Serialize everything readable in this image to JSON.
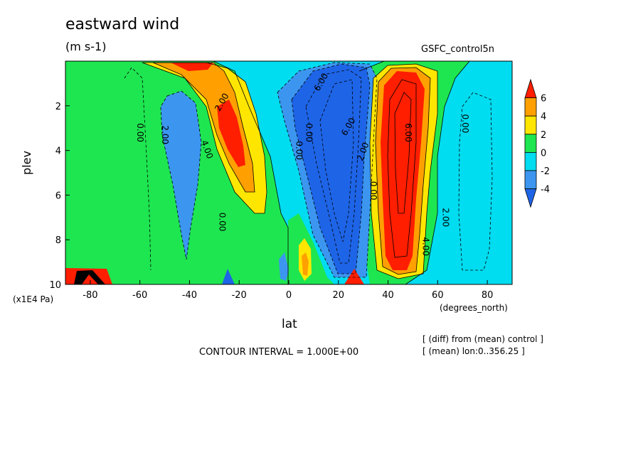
{
  "title": "eastward wind",
  "units": "(m s-1)",
  "source": "GSFC_control5n",
  "ylabel": "plev",
  "xlabel": "lat",
  "plev_scale": "(x1E4 Pa)",
  "lat_units": "(degrees_north)",
  "contour_interval": "CONTOUR INTERVAL = 1.000E+00",
  "diff_note": "[ (diff) from (mean) control ]",
  "mean_note": "[ (mean) lon:0..356.25 ]",
  "colors": {
    "below_-4": "#1e64e6",
    "-4_-2": "#3c96f0",
    "-2_0": "#00dcf0",
    "0_2": "#1ee650",
    "2_4": "#ffe600",
    "4_6": "#ffa000",
    "above_6": "#ff1e00"
  },
  "chart_data": {
    "type": "contour",
    "xlim": [
      -90,
      90
    ],
    "ylim": [
      10,
      0
    ],
    "x_ticks": [
      -80,
      -60,
      -40,
      -20,
      0,
      20,
      40,
      60,
      80
    ],
    "x_tick_labels": [
      "-80",
      "-60",
      "-40",
      "-20",
      "0",
      "20",
      "40",
      "60",
      "80"
    ],
    "y_ticks": [
      2,
      4,
      6,
      8,
      10
    ],
    "y_tick_labels": [
      "2",
      "4",
      "6",
      "8",
      "10"
    ],
    "colorbar_ticks": [
      "6",
      "4",
      "2",
      "0",
      "-2",
      "-4"
    ],
    "contour_labels": [
      {
        "text": "2.00",
        "lat": -26,
        "plev": 1.9,
        "rotate": -60
      },
      {
        "text": "4.00",
        "lat": -34,
        "plev": 4.0,
        "rotate": 70
      },
      {
        "text": "0.00",
        "lat": -61,
        "plev": 3.2,
        "rotate": 90
      },
      {
        "text": "2.00",
        "lat": -51,
        "plev": 3.3,
        "rotate": 90
      },
      {
        "text": "0.00",
        "lat": -28,
        "plev": 7.2,
        "rotate": 90
      },
      {
        "text": "0.00",
        "lat": 7,
        "plev": 3.2,
        "rotate": 90
      },
      {
        "text": "0.00",
        "lat": 3,
        "plev": 4.0,
        "rotate": 90
      },
      {
        "text": "6.00",
        "lat": 14,
        "plev": 1.0,
        "rotate": -60
      },
      {
        "text": "6.00",
        "lat": 25,
        "plev": 3.0,
        "rotate": -60
      },
      {
        "text": "2.00",
        "lat": 31,
        "plev": 4.1,
        "rotate": -70
      },
      {
        "text": "0.00",
        "lat": 33,
        "plev": 5.8,
        "rotate": 90
      },
      {
        "text": "6.00",
        "lat": 47,
        "plev": 3.2,
        "rotate": 90
      },
      {
        "text": "4.00",
        "lat": 54,
        "plev": 8.3,
        "rotate": 90
      },
      {
        "text": "2.00",
        "lat": 62,
        "plev": 7.0,
        "rotate": 90
      },
      {
        "text": "0.00",
        "lat": 70,
        "plev": 2.8,
        "rotate": 90
      }
    ]
  }
}
